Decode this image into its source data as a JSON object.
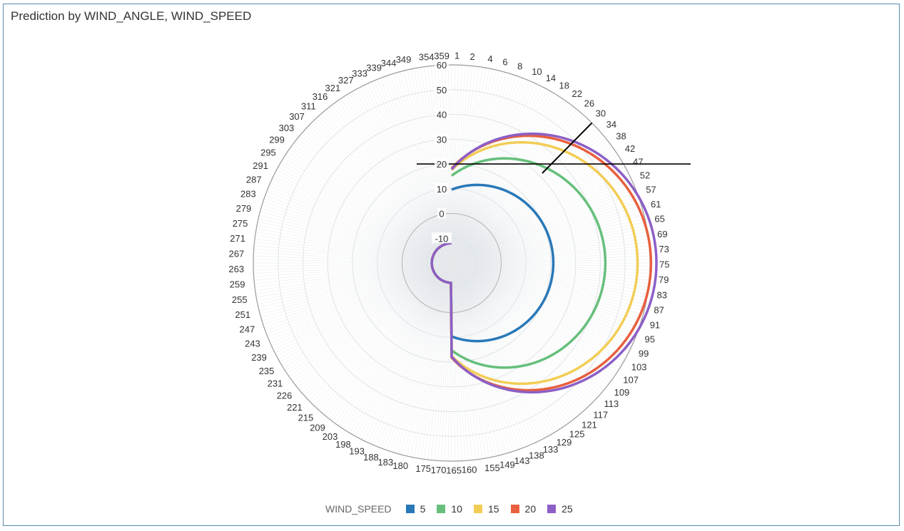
{
  "chart_data": {
    "type": "line",
    "polar": true,
    "title": "Prediction by WIND_ANGLE, WIND_SPEED",
    "angular_axis": {
      "name": "WIND_ANGLE",
      "tick_labels": [
        "1",
        "2",
        "4",
        "6",
        "8",
        "10",
        "14",
        "18",
        "22",
        "26",
        "30",
        "34",
        "38",
        "42",
        "47",
        "52",
        "57",
        "61",
        "65",
        "69",
        "73",
        "75",
        "79",
        "83",
        "87",
        "91",
        "95",
        "99",
        "103",
        "107",
        "109",
        "113",
        "117",
        "121",
        "125",
        "129",
        "133",
        "138",
        "143",
        "149",
        "155",
        "160",
        "165",
        "170",
        "175",
        "180",
        "183",
        "188",
        "193",
        "198",
        "203",
        "209",
        "215",
        "221",
        "226",
        "231",
        "235",
        "239",
        "243",
        "247",
        "251",
        "255",
        "259",
        "263",
        "267",
        "271",
        "275",
        "279",
        "283",
        "287",
        "291",
        "295",
        "299",
        "303",
        "307",
        "311",
        "316",
        "321",
        "327",
        "333",
        "339",
        "344",
        "349",
        "354",
        "359"
      ]
    },
    "radial_axis": {
      "range": [
        -20,
        60
      ],
      "ticks": [
        "-10",
        "0",
        "10",
        "20",
        "30",
        "40",
        "50",
        "60"
      ]
    },
    "legend": {
      "title": "WIND_SPEED",
      "position": "bottom"
    },
    "series": [
      {
        "name": "5",
        "color": "#2878b8",
        "cardioid": {
          "a": 9.65,
          "b": 11.35
        }
      },
      {
        "name": "10",
        "color": "#66bf7b",
        "cardioid": {
          "a": 15.25,
          "b": 26.75
        }
      },
      {
        "name": "15",
        "color": "#f2cd55",
        "cardioid": {
          "a": 17.55,
          "b": 37.45
        }
      },
      {
        "name": "20",
        "color": "#e8603e",
        "cardioid": {
          "a": 18.2,
          "b": 42.2
        }
      },
      {
        "name": "25",
        "color": "#8c5fc6",
        "cardioid": {
          "a": 17.8,
          "b": 44.8
        }
      }
    ],
    "reference_lines": [
      {
        "type": "radial",
        "angle": 45
      },
      {
        "type": "horizontal",
        "y": 22
      }
    ]
  }
}
